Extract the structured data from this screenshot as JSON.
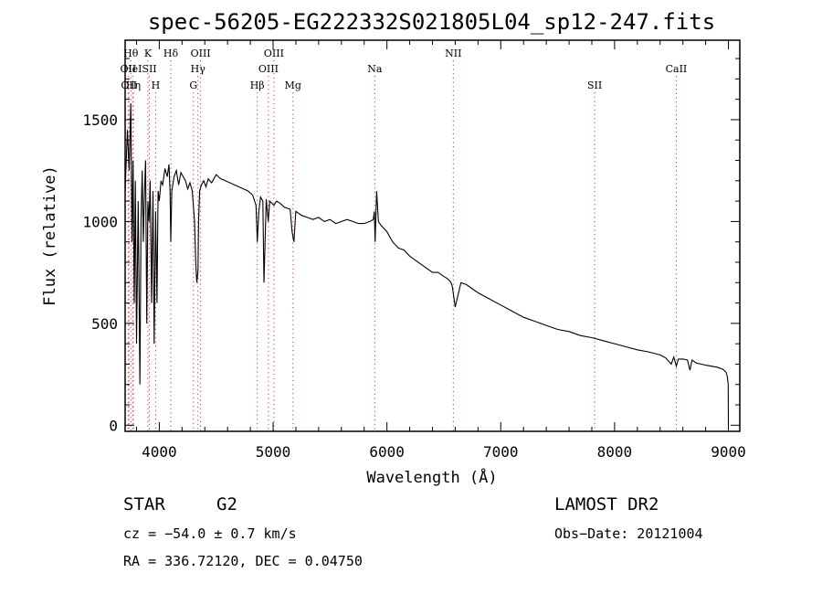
{
  "chart_data": {
    "type": "line",
    "title": "spec-56205-EG222332S021805L04_sp12-247.fits",
    "xlabel": "Wavelength (Å)",
    "ylabel": "Flux (relative)",
    "xlim": [
      3700,
      9100
    ],
    "ylim": [
      -30,
      1890
    ],
    "xticks": [
      4000,
      5000,
      6000,
      7000,
      8000,
      9000
    ],
    "yticks": [
      0,
      500,
      1000,
      1500
    ],
    "line_color": "#000000",
    "marker_color": "#cc3333",
    "series": [
      {
        "x": [
          3700,
          3720,
          3735,
          3750,
          3760,
          3770,
          3780,
          3790,
          3800,
          3815,
          3830,
          3840,
          3850,
          3860,
          3870,
          3880,
          3890,
          3900,
          3910,
          3920,
          3933,
          3945,
          3955,
          3968,
          3980,
          3990,
          4000,
          4015,
          4030,
          4050,
          4070,
          4085,
          4095,
          4101,
          4110,
          4130,
          4150,
          4170,
          4190,
          4210,
          4230,
          4250,
          4270,
          4290,
          4310,
          4320,
          4330,
          4340,
          4345,
          4355,
          4370,
          4390,
          4410,
          4430,
          4460,
          4500,
          4540,
          4580,
          4620,
          4660,
          4700,
          4740,
          4780,
          4820,
          4850,
          4861,
          4875,
          4890,
          4910,
          4920,
          4940,
          4957,
          4970,
          5007,
          5030,
          5060,
          5100,
          5150,
          5167,
          5183,
          5200,
          5250,
          5300,
          5350,
          5400,
          5450,
          5500,
          5550,
          5600,
          5650,
          5700,
          5750,
          5800,
          5850,
          5880,
          5890,
          5896,
          5910,
          5925,
          5950,
          6000,
          6050,
          6100,
          6150,
          6200,
          6250,
          6300,
          6350,
          6400,
          6450,
          6500,
          6530,
          6550,
          6563,
          6575,
          6600,
          6650,
          6700,
          6750,
          6800,
          6900,
          7000,
          7100,
          7200,
          7300,
          7400,
          7500,
          7600,
          7700,
          7800,
          7900,
          8000,
          8100,
          8200,
          8300,
          8400,
          8450,
          8498,
          8520,
          8542,
          8560,
          8600,
          8640,
          8662,
          8680,
          8720,
          8760,
          8800,
          8850,
          8900,
          8950,
          8980,
          8990,
          8998,
          9000
        ],
        "y": [
          1150,
          1450,
          1250,
          1580,
          900,
          1300,
          600,
          1200,
          400,
          1100,
          200,
          1000,
          1250,
          900,
          1150,
          1300,
          500,
          1100,
          1000,
          1200,
          600,
          1150,
          400,
          1050,
          600,
          1150,
          1100,
          1200,
          1180,
          1260,
          1220,
          1280,
          1150,
          900,
          1150,
          1220,
          1250,
          1180,
          1240,
          1220,
          1200,
          1160,
          1190,
          1150,
          1000,
          800,
          700,
          760,
          1000,
          1150,
          1180,
          1200,
          1170,
          1210,
          1190,
          1230,
          1210,
          1200,
          1190,
          1180,
          1170,
          1160,
          1150,
          1130,
          1080,
          900,
          1050,
          1120,
          1100,
          700,
          1110,
          1000,
          1100,
          1080,
          1100,
          1090,
          1070,
          1060,
          950,
          900,
          1050,
          1030,
          1020,
          1010,
          1020,
          1000,
          1010,
          990,
          1000,
          1010,
          1000,
          990,
          990,
          1000,
          1010,
          1050,
          900,
          1150,
          1000,
          980,
          950,
          900,
          870,
          860,
          830,
          810,
          790,
          770,
          750,
          750,
          730,
          720,
          710,
          700,
          680,
          580,
          700,
          690,
          670,
          650,
          620,
          590,
          560,
          530,
          510,
          490,
          470,
          460,
          440,
          430,
          415,
          400,
          385,
          370,
          360,
          345,
          330,
          300,
          335,
          290,
          325,
          325,
          320,
          270,
          320,
          305,
          300,
          295,
          290,
          285,
          275,
          260,
          240,
          200,
          0
        ]
      }
    ],
    "line_markers": [
      {
        "wave": 3727,
        "label": "OII",
        "row": 2
      },
      {
        "wave": 3734,
        "label": "OII",
        "row": 3
      },
      {
        "wave": 3750,
        "label": "Hθ",
        "row": 1
      },
      {
        "wave": 3766,
        "label": "HeI",
        "row": 2
      },
      {
        "wave": 3772,
        "label": "Hη",
        "row": 3
      },
      {
        "wave": 3900,
        "label": "K",
        "row": 1
      },
      {
        "wave": 3913,
        "label": "SII",
        "row": 2
      },
      {
        "wave": 3968,
        "label": "H",
        "row": 3
      },
      {
        "wave": 4101,
        "label": "Hδ",
        "row": 1
      },
      {
        "wave": 4300,
        "label": "G",
        "row": 3
      },
      {
        "wave": 4340,
        "label": "Hγ",
        "row": 2
      },
      {
        "wave": 4363,
        "label": "OIII",
        "row": 1
      },
      {
        "wave": 4861,
        "label": "Hβ",
        "row": 3
      },
      {
        "wave": 4959,
        "label": "OIII",
        "row": 2
      },
      {
        "wave": 5007,
        "label": "OIII",
        "row": 1
      },
      {
        "wave": 5175,
        "label": "Mg",
        "row": 3
      },
      {
        "wave": 5893,
        "label": "Na",
        "row": 2
      },
      {
        "wave": 6583,
        "label": "NII",
        "row": 1
      },
      {
        "wave": 7825,
        "label": "SII",
        "row": 3
      },
      {
        "wave": 8542,
        "label": "CaII",
        "row": 2
      }
    ]
  },
  "info": {
    "object_class": "STAR",
    "subclass": "G2",
    "survey": "LAMOST DR2",
    "redshift": "cz = −54.0 ± 0.7 km/s",
    "obs_date": "Obs−Date: 20121004",
    "coords": "RA = 336.72120, DEC =   0.04750"
  }
}
